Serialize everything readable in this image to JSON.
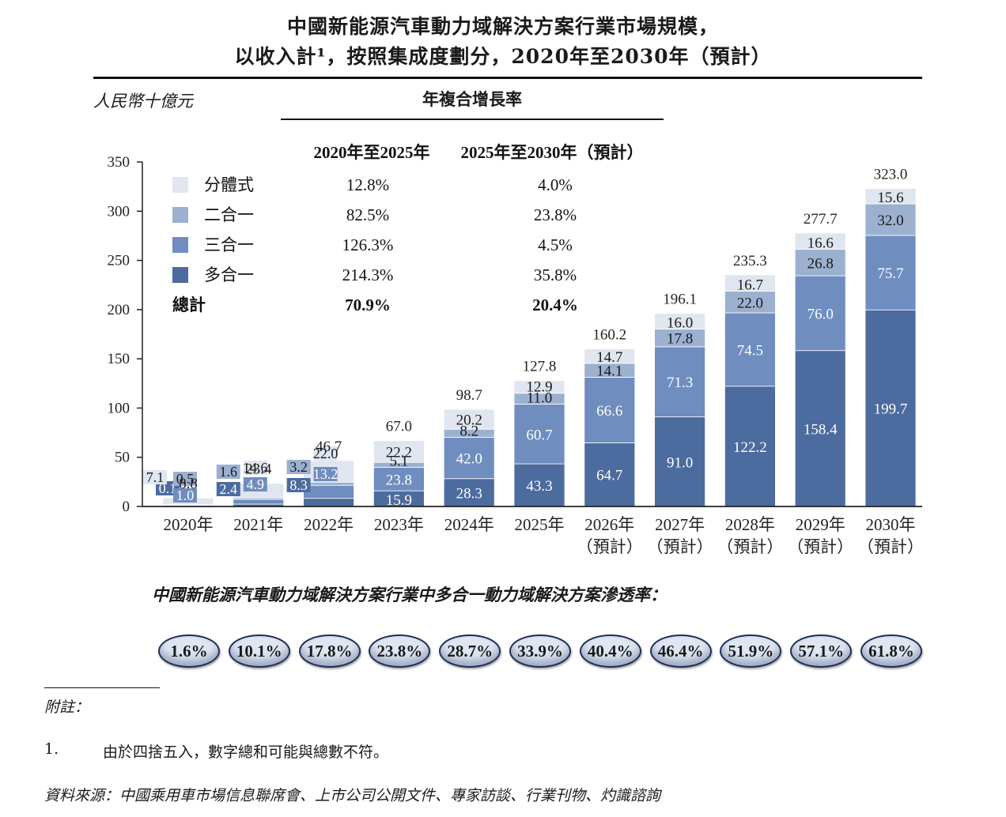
{
  "title_line1": "中國新能源汽車動力域解決方案行業市場規模，",
  "title_line2": "以收入計¹，按照集成度劃分，2020年至2030年（預計）",
  "unit_label": "人民幣十億元",
  "cagr_header": "年複合增長率",
  "cagr_col1": "2020年至2025年",
  "cagr_col2": "2025年至2030年（預計）",
  "cagr_rows": [
    {
      "label": "分體式",
      "c1": "12.8%",
      "c2": "4.0%",
      "color": "#dfe6f0"
    },
    {
      "label": "二合一",
      "c1": "82.5%",
      "c2": "23.8%",
      "color": "#9cb0d0"
    },
    {
      "label": "三合一",
      "c1": "126.3%",
      "c2": "4.5%",
      "color": "#6f8dbf"
    },
    {
      "label": "多合一",
      "c1": "214.3%",
      "c2": "35.8%",
      "color": "#4c6b9f"
    }
  ],
  "cagr_total": {
    "label": "總計",
    "c1": "70.9%",
    "c2": "20.4%"
  },
  "penetration_title": "中國新能源汽車動力域解決方案行業中多合一動力域解決方案滲透率：",
  "penetration": [
    "1.6%",
    "10.1%",
    "17.8%",
    "23.8%",
    "28.7%",
    "33.9%",
    "40.4%",
    "46.4%",
    "51.9%",
    "57.1%",
    "61.8%"
  ],
  "notes_label": "附註：",
  "note1_num": "1.",
  "note1_text": "由於四捨五入，數字總和可能與總數不符。",
  "source": "資料來源：中國乘用車市場信息聯席會、上市公司公開文件、專家訪談、行業刊物、灼識諮詢",
  "chart_data": {
    "type": "bar",
    "stacked": true,
    "ylim": [
      0,
      350
    ],
    "yticks": [
      0,
      50,
      100,
      150,
      200,
      250,
      300,
      350
    ],
    "categories": [
      "2020年",
      "2021年",
      "2022年",
      "2023年",
      "2024年",
      "2025年",
      "2026年",
      "2027年",
      "2028年",
      "2029年",
      "2030年"
    ],
    "category_sublabels": [
      "",
      "",
      "",
      "",
      "",
      "",
      "（預計）",
      "（預計）",
      "（預計）",
      "（預計）",
      "（預計）"
    ],
    "series": [
      {
        "name": "多合一",
        "color": "#4c6b9f",
        "values": [
          0.1,
          2.4,
          8.3,
          15.9,
          28.3,
          43.3,
          64.7,
          91.0,
          122.2,
          158.4,
          199.7
        ],
        "labels": [
          "0.1",
          "2.4",
          "8.3",
          "15.9",
          "28.3",
          "43.3",
          "64.7",
          "91.0",
          "122.2",
          "158.4",
          "199.7"
        ]
      },
      {
        "name": "三合一",
        "color": "#6f8dbf",
        "values": [
          1.0,
          4.9,
          13.2,
          23.8,
          42.0,
          60.7,
          66.6,
          71.3,
          74.5,
          76.0,
          75.7
        ],
        "labels": [
          "1.0",
          "4.9",
          "13.2",
          "23.8",
          "42.0",
          "60.7",
          "66.6",
          "71.3",
          "74.5",
          "76.0",
          "75.7"
        ]
      },
      {
        "name": "二合一",
        "color": "#9cb0d0",
        "values": [
          0.5,
          1.6,
          3.2,
          5.1,
          8.2,
          11.0,
          14.1,
          17.8,
          22.0,
          26.8,
          32.0
        ],
        "labels": [
          "0.5",
          "1.6",
          "3.2",
          "5.1",
          "8.2",
          "11.0",
          "14.1",
          "17.8",
          "22.0",
          "26.8",
          "32.0"
        ]
      },
      {
        "name": "分體式",
        "color": "#dfe6f0",
        "values": [
          7.1,
          14.6,
          22.0,
          22.2,
          20.2,
          12.9,
          14.7,
          16.0,
          16.7,
          16.6,
          15.6
        ],
        "labels": [
          "7.1",
          "14.6",
          "22.0",
          "22.2",
          "20.2",
          "12.9",
          "14.7",
          "16.0",
          "16.7",
          "16.6",
          "15.6"
        ]
      }
    ],
    "totals": [
      "8.8",
      "23.4",
      "46.7",
      "67.0",
      "98.7",
      "127.8",
      "160.2",
      "196.1",
      "235.3",
      "277.7",
      "323.0"
    ]
  }
}
